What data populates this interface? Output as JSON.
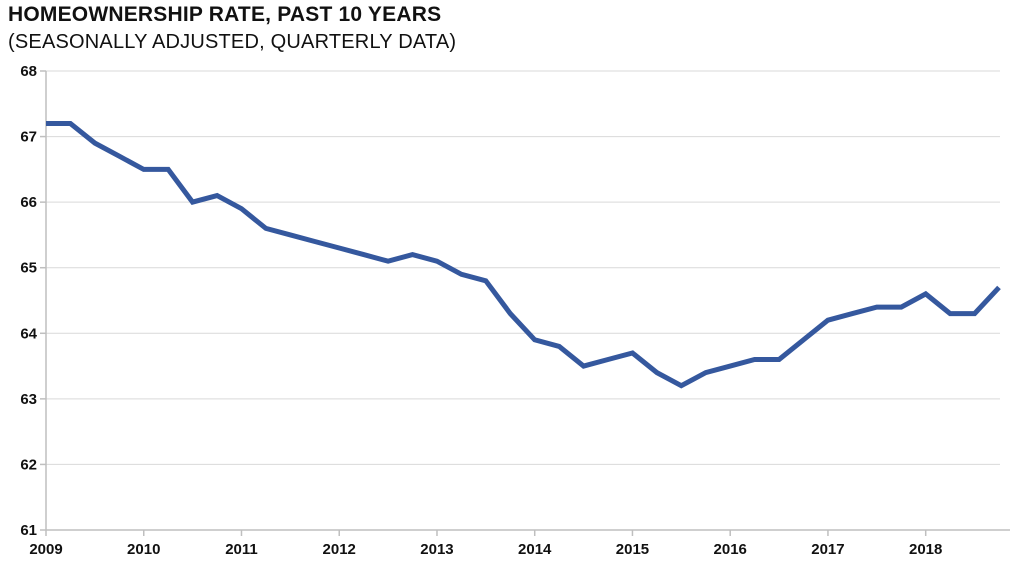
{
  "chart_data": {
    "type": "line",
    "title": "HOMEOWNERSHIP RATE, PAST 10 YEARS",
    "subtitle": "(SEASONALLY ADJUSTED, QUARTERLY DATA)",
    "x_frequency": "quarterly",
    "x_tick_labels": [
      "2009",
      "2010",
      "2011",
      "2012",
      "2013",
      "2014",
      "2015",
      "2016",
      "2017",
      "2018"
    ],
    "y_ticks": [
      61,
      62,
      63,
      64,
      65,
      66,
      67,
      68
    ],
    "ylim": [
      61,
      68
    ],
    "grid": true,
    "legend_position": "none",
    "series": [
      {
        "name": "Homeownership rate (%)",
        "values": [
          67.2,
          67.2,
          66.9,
          66.7,
          66.5,
          66.5,
          66.0,
          66.1,
          65.9,
          65.6,
          65.5,
          65.4,
          65.3,
          65.2,
          65.1,
          65.2,
          65.1,
          64.9,
          64.8,
          64.3,
          63.9,
          63.8,
          63.5,
          63.6,
          63.7,
          63.4,
          63.2,
          63.4,
          63.5,
          63.6,
          63.6,
          63.9,
          64.2,
          64.3,
          64.4,
          64.4,
          64.6,
          64.3,
          64.3,
          64.7
        ]
      }
    ],
    "colors": {
      "line": "#35589E",
      "grid": "#D9D9D9",
      "axis": "#BFBFBF",
      "text": "#111111"
    }
  }
}
